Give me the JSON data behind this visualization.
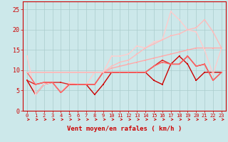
{
  "background_color": "#cce8ea",
  "grid_color": "#aacccc",
  "xlabel": "Vent moyen/en rafales ( km/h )",
  "xlim": [
    -0.5,
    23.5
  ],
  "ylim": [
    0,
    27
  ],
  "yticks": [
    0,
    5,
    10,
    15,
    20,
    25
  ],
  "xticks": [
    0,
    1,
    2,
    3,
    4,
    5,
    6,
    7,
    8,
    9,
    10,
    11,
    12,
    13,
    14,
    15,
    16,
    17,
    18,
    19,
    20,
    21,
    22,
    23
  ],
  "lines": [
    {
      "x": [
        0,
        1,
        2,
        3,
        4,
        5,
        6,
        7,
        8,
        9,
        10,
        11,
        12,
        13,
        14,
        15,
        16,
        17,
        18,
        19,
        20,
        21,
        22,
        23
      ],
      "y": [
        7.5,
        4.0,
        6.5,
        7.0,
        4.5,
        6.5,
        6.5,
        6.5,
        4.0,
        6.5,
        9.5,
        9.5,
        9.5,
        9.5,
        9.5,
        7.5,
        6.5,
        11.5,
        13.5,
        11.5,
        7.5,
        9.5,
        9.5,
        9.5
      ],
      "color": "#cc0000",
      "linewidth": 1.0,
      "marker": "s",
      "markersize": 2.0
    },
    {
      "x": [
        0,
        1,
        2,
        3,
        4,
        5,
        6,
        7,
        8,
        9,
        10,
        11,
        12,
        13,
        14,
        15,
        16,
        17,
        18,
        19,
        20,
        21,
        22,
        23
      ],
      "y": [
        9.5,
        9.5,
        9.5,
        9.5,
        9.5,
        9.5,
        9.5,
        9.5,
        9.5,
        9.5,
        10.5,
        11.0,
        11.5,
        12.0,
        12.5,
        13.0,
        13.5,
        14.0,
        14.5,
        15.0,
        15.5,
        15.5,
        15.5,
        15.5
      ],
      "color": "#ffaaaa",
      "linewidth": 1.0,
      "marker": "s",
      "markersize": 2.0
    },
    {
      "x": [
        0,
        1,
        2,
        3,
        4,
        5,
        6,
        7,
        8,
        9,
        10,
        11,
        12,
        13,
        14,
        15,
        16,
        17,
        18,
        19,
        20,
        21,
        22,
        23
      ],
      "y": [
        13.5,
        4.0,
        6.5,
        7.0,
        4.5,
        7.0,
        6.5,
        6.5,
        9.5,
        9.5,
        13.5,
        13.5,
        14.0,
        16.0,
        15.5,
        17.0,
        17.5,
        24.5,
        22.5,
        20.0,
        19.5,
        15.0,
        9.0,
        15.5
      ],
      "color": "#ffcccc",
      "linewidth": 1.0,
      "marker": "s",
      "markersize": 2.0
    },
    {
      "x": [
        0,
        1,
        2,
        3,
        4,
        5,
        6,
        7,
        8,
        9,
        10,
        11,
        12,
        13,
        14,
        15,
        16,
        17,
        18,
        19,
        20,
        21,
        22,
        23
      ],
      "y": [
        7.5,
        6.5,
        7.0,
        7.0,
        7.0,
        6.5,
        6.5,
        6.5,
        6.5,
        9.5,
        9.5,
        9.5,
        9.5,
        9.5,
        9.5,
        11.0,
        12.5,
        11.5,
        11.5,
        13.5,
        11.0,
        11.5,
        7.5,
        9.5
      ],
      "color": "#dd2222",
      "linewidth": 1.0,
      "marker": "s",
      "markersize": 2.0
    },
    {
      "x": [
        0,
        1,
        2,
        3,
        4,
        5,
        6,
        7,
        8,
        9,
        10,
        11,
        12,
        13,
        14,
        15,
        16,
        17,
        18,
        19,
        20,
        21,
        22,
        23
      ],
      "y": [
        9.5,
        6.5,
        7.0,
        7.0,
        4.5,
        6.5,
        6.5,
        6.5,
        6.5,
        9.5,
        9.5,
        9.5,
        9.5,
        9.5,
        9.5,
        11.0,
        12.0,
        11.5,
        11.5,
        13.5,
        11.0,
        11.5,
        7.5,
        9.5
      ],
      "color": "#ff6666",
      "linewidth": 1.0,
      "marker": "s",
      "markersize": 2.0
    },
    {
      "x": [
        0,
        1,
        2,
        3,
        4,
        5,
        6,
        7,
        8,
        9,
        10,
        11,
        12,
        13,
        14,
        15,
        16,
        17,
        18,
        19,
        20,
        21,
        22,
        23
      ],
      "y": [
        9.5,
        9.5,
        9.5,
        9.5,
        9.5,
        9.5,
        9.5,
        9.5,
        9.5,
        9.5,
        11.0,
        12.0,
        12.5,
        14.0,
        15.5,
        16.5,
        17.5,
        18.5,
        19.0,
        20.0,
        20.5,
        22.5,
        19.5,
        15.5
      ],
      "color": "#ffbbbb",
      "linewidth": 1.0,
      "marker": "s",
      "markersize": 2.0
    }
  ],
  "arrow_color": "#cc0000",
  "tick_color": "#cc0000",
  "xlabel_color": "#cc0000",
  "axis_color": "#cc0000"
}
